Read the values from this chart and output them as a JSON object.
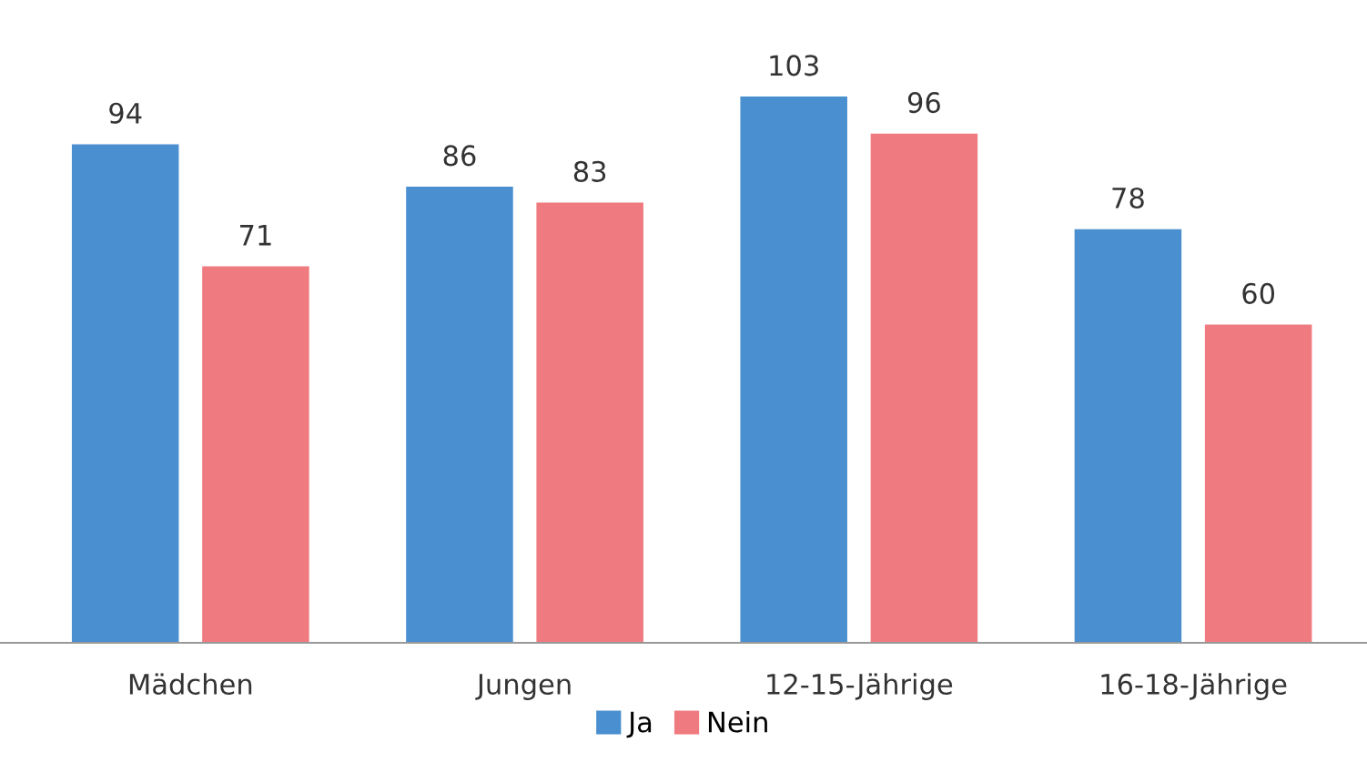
{
  "chart_data": {
    "type": "bar",
    "categories": [
      "Mädchen",
      "Jungen",
      "12-15-Jährige",
      "16-18-Jährige"
    ],
    "series": [
      {
        "name": "Ja",
        "color": "#4a8fcf",
        "values": [
          94,
          86,
          103,
          78
        ]
      },
      {
        "name": "Nein",
        "color": "#ef7b80",
        "values": [
          71,
          83,
          96,
          60
        ]
      }
    ],
    "data_labels": true,
    "legend": "bottom",
    "grid": false
  }
}
